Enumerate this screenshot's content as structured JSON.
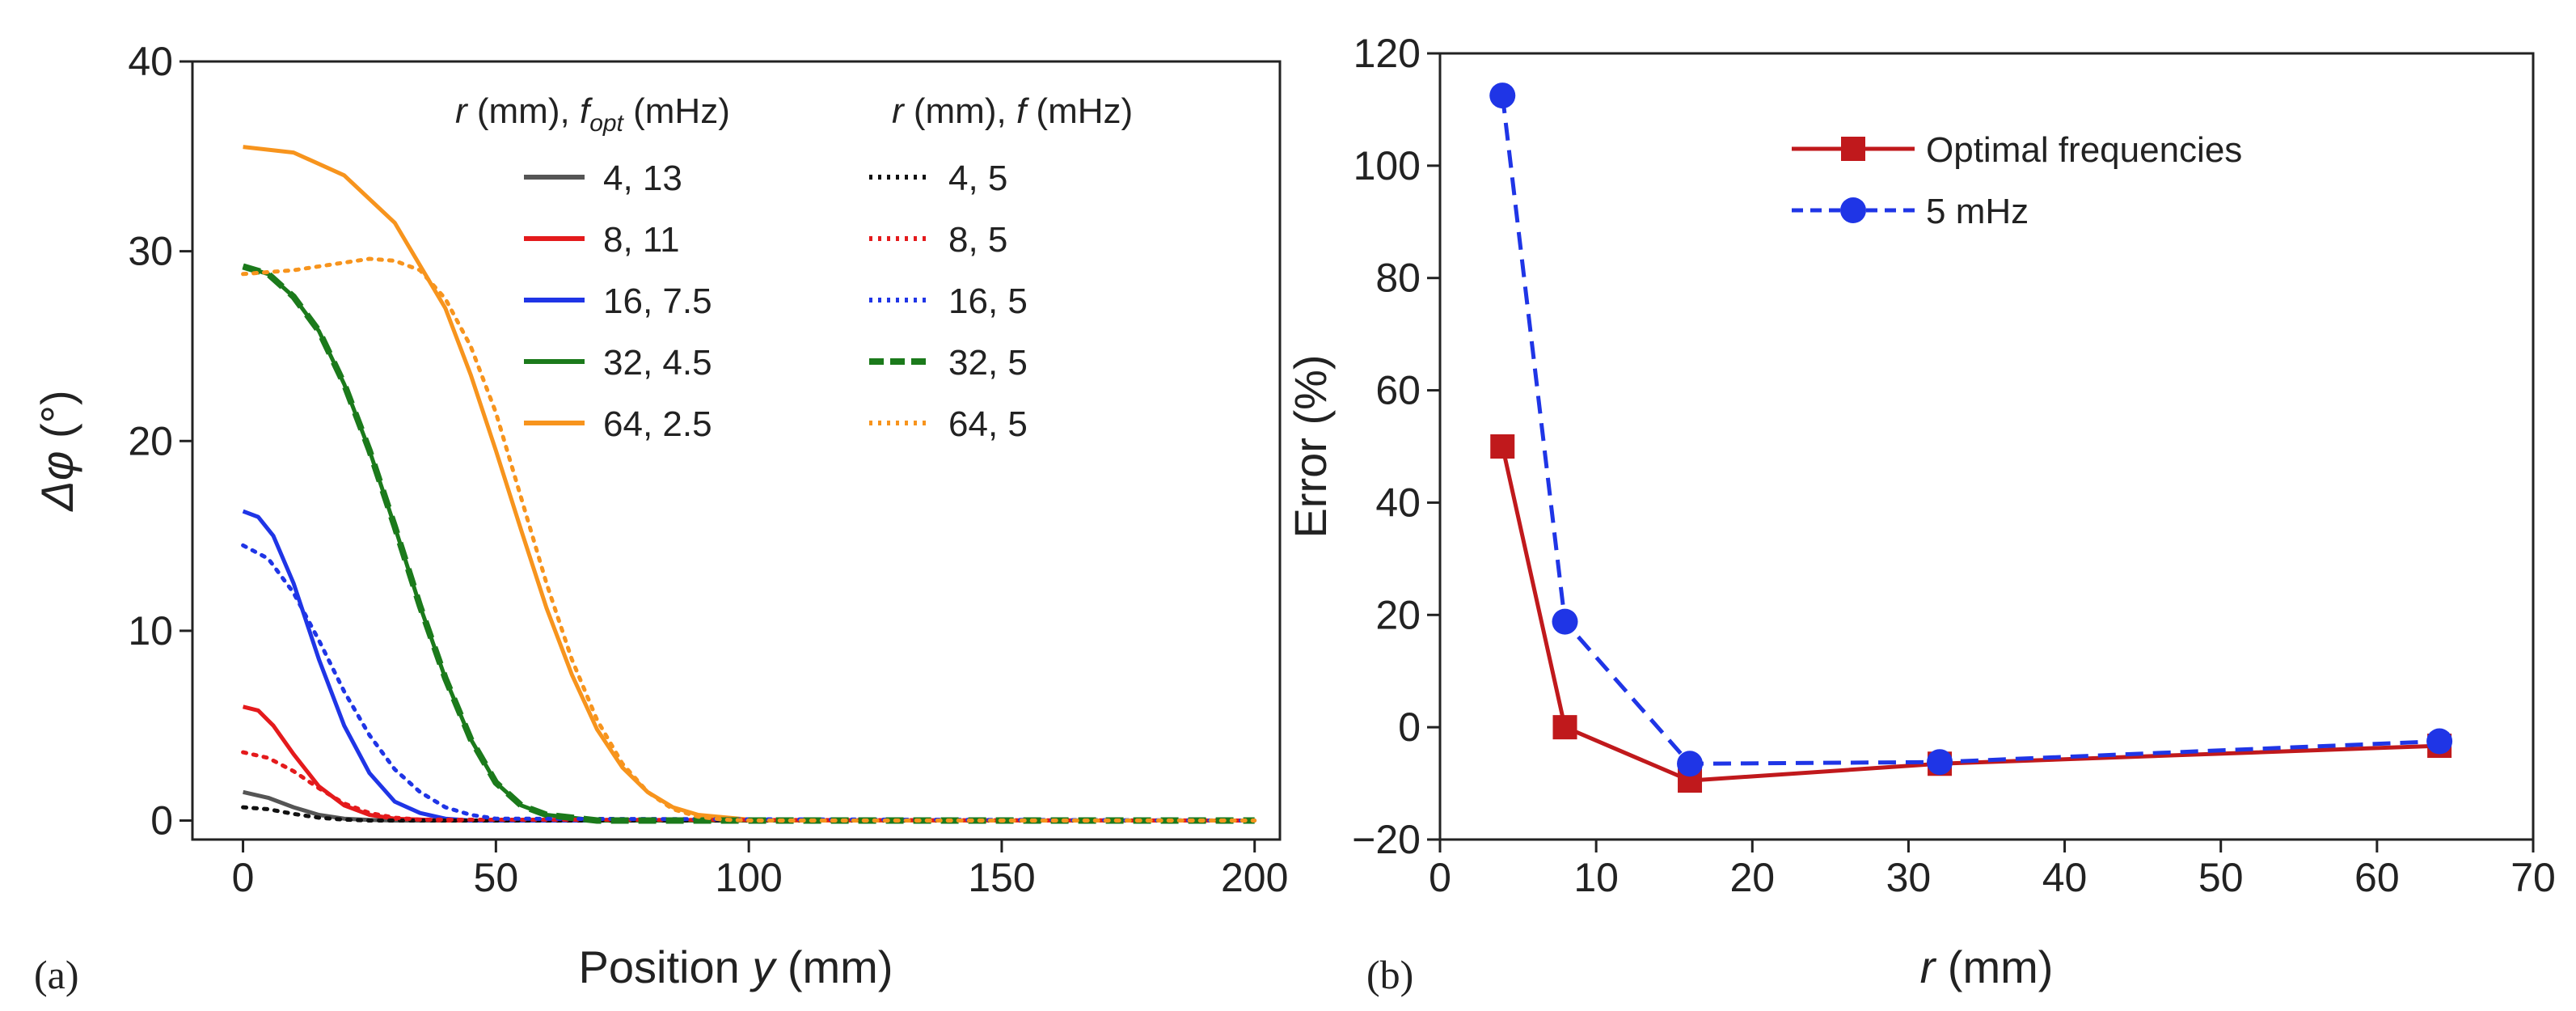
{
  "panels": {
    "a": {
      "label": "(a)",
      "legend_header_1": {
        "prefix": "r",
        "middle": " (mm), ",
        "f": "f",
        "sub": "opt",
        "suffix": " (mHz)"
      },
      "legend_header_2": {
        "prefix": "r",
        "middle": " (mm), ",
        "f": "f",
        "suffix": " (mHz)"
      }
    },
    "b": {
      "label": "(b)"
    }
  },
  "chart_data": [
    {
      "type": "line",
      "xlabel": "Position y (mm)",
      "ylabel": "Δφ (°)",
      "xlim": [
        -10,
        205
      ],
      "ylim": [
        -1,
        40
      ],
      "xticks": [
        0,
        50,
        100,
        150,
        200
      ],
      "yticks": [
        0,
        10,
        20,
        30,
        40
      ],
      "legend_placement": "top-right",
      "series": [
        {
          "name": "4, 13",
          "style": "solid",
          "color": "#555555",
          "x": [
            0,
            5,
            10,
            15,
            20,
            25,
            30,
            200
          ],
          "y": [
            1.5,
            1.2,
            0.7,
            0.3,
            0.1,
            0.03,
            0,
            0
          ]
        },
        {
          "name": "8, 11",
          "style": "solid",
          "color": "#e41a1c",
          "x": [
            0,
            3,
            6,
            10,
            15,
            20,
            25,
            30,
            40,
            200
          ],
          "y": [
            6.0,
            5.8,
            5.0,
            3.5,
            1.8,
            0.8,
            0.3,
            0.1,
            0,
            0
          ]
        },
        {
          "name": "16, 7.5",
          "style": "solid",
          "color": "#1f35e6",
          "x": [
            0,
            3,
            6,
            10,
            15,
            20,
            25,
            30,
            35,
            40,
            45,
            200
          ],
          "y": [
            16.3,
            16.0,
            15.0,
            12.5,
            8.5,
            5.0,
            2.5,
            1.0,
            0.4,
            0.1,
            0,
            0
          ]
        },
        {
          "name": "32, 4.5",
          "style": "solid",
          "color": "#1b7a1b",
          "x": [
            0,
            5,
            10,
            15,
            20,
            25,
            30,
            35,
            40,
            45,
            50,
            55,
            60,
            70,
            200
          ],
          "y": [
            29.2,
            28.8,
            27.6,
            25.8,
            23.0,
            19.5,
            15.5,
            11.3,
            7.5,
            4.3,
            2.0,
            0.8,
            0.3,
            0,
            0
          ]
        },
        {
          "name": "64, 2.5",
          "style": "solid",
          "color": "#f7941d",
          "x": [
            0,
            10,
            20,
            30,
            40,
            45,
            50,
            55,
            60,
            65,
            70,
            75,
            80,
            85,
            90,
            100,
            110,
            200
          ],
          "y": [
            35.5,
            35.2,
            34.0,
            31.5,
            27.0,
            23.5,
            19.5,
            15.3,
            11.2,
            7.7,
            4.8,
            2.8,
            1.5,
            0.7,
            0.3,
            0.05,
            0,
            0
          ]
        },
        {
          "name": "4, 5",
          "style": "dotted",
          "color": "#111111",
          "x": [
            0,
            5,
            10,
            15,
            20,
            25,
            200
          ],
          "y": [
            0.7,
            0.6,
            0.35,
            0.15,
            0.05,
            0,
            0
          ]
        },
        {
          "name": "8, 5",
          "style": "dotted",
          "color": "#e41a1c",
          "x": [
            0,
            5,
            10,
            15,
            20,
            25,
            30,
            35,
            200
          ],
          "y": [
            3.6,
            3.3,
            2.6,
            1.7,
            0.9,
            0.4,
            0.15,
            0.05,
            0
          ]
        },
        {
          "name": "16, 5",
          "style": "dotted",
          "color": "#1f35e6",
          "x": [
            0,
            5,
            10,
            15,
            20,
            25,
            30,
            35,
            40,
            45,
            50,
            200
          ],
          "y": [
            14.5,
            13.8,
            12.0,
            9.5,
            6.8,
            4.5,
            2.7,
            1.5,
            0.7,
            0.3,
            0.1,
            0
          ]
        },
        {
          "name": "32, 5",
          "style": "dashed",
          "color": "#1b7a1b",
          "x": [
            0,
            5,
            10,
            15,
            20,
            25,
            30,
            35,
            40,
            45,
            50,
            55,
            60,
            70,
            200
          ],
          "y": [
            29.2,
            28.8,
            27.6,
            25.8,
            23.0,
            19.5,
            15.5,
            11.3,
            7.5,
            4.3,
            2.0,
            0.8,
            0.3,
            0,
            0
          ]
        },
        {
          "name": "64, 5",
          "style": "dotted",
          "color": "#f7941d",
          "x": [
            0,
            10,
            20,
            25,
            30,
            35,
            40,
            45,
            50,
            55,
            60,
            65,
            70,
            75,
            80,
            85,
            90,
            95,
            100,
            200
          ],
          "y": [
            28.8,
            29.0,
            29.4,
            29.6,
            29.5,
            29.0,
            27.5,
            25.0,
            21.5,
            17.0,
            12.5,
            8.5,
            5.3,
            3.0,
            1.5,
            0.6,
            0.2,
            0.05,
            0,
            0
          ]
        }
      ]
    },
    {
      "type": "line",
      "xlabel": "r (mm)",
      "ylabel": "Error (%)",
      "xlim": [
        0,
        70
      ],
      "ylim": [
        -20,
        120
      ],
      "xticks": [
        0,
        10,
        20,
        30,
        40,
        50,
        60,
        70
      ],
      "yticks": [
        -20,
        0,
        20,
        40,
        60,
        80,
        100,
        120
      ],
      "legend_placement": "top-right",
      "series": [
        {
          "name": "Optimal frequencies",
          "style": "solid",
          "marker": "square",
          "color": "#c0191c",
          "x": [
            4,
            8,
            16,
            32,
            64
          ],
          "y": [
            50,
            0,
            -9.5,
            -6.5,
            -3.3
          ]
        },
        {
          "name": "5 mHz",
          "style": "dashed",
          "marker": "circle",
          "color": "#1f35e6",
          "x": [
            4,
            8,
            16,
            32,
            64
          ],
          "y": [
            112.5,
            18.8,
            -6.5,
            -6.2,
            -2.5
          ]
        }
      ]
    }
  ]
}
